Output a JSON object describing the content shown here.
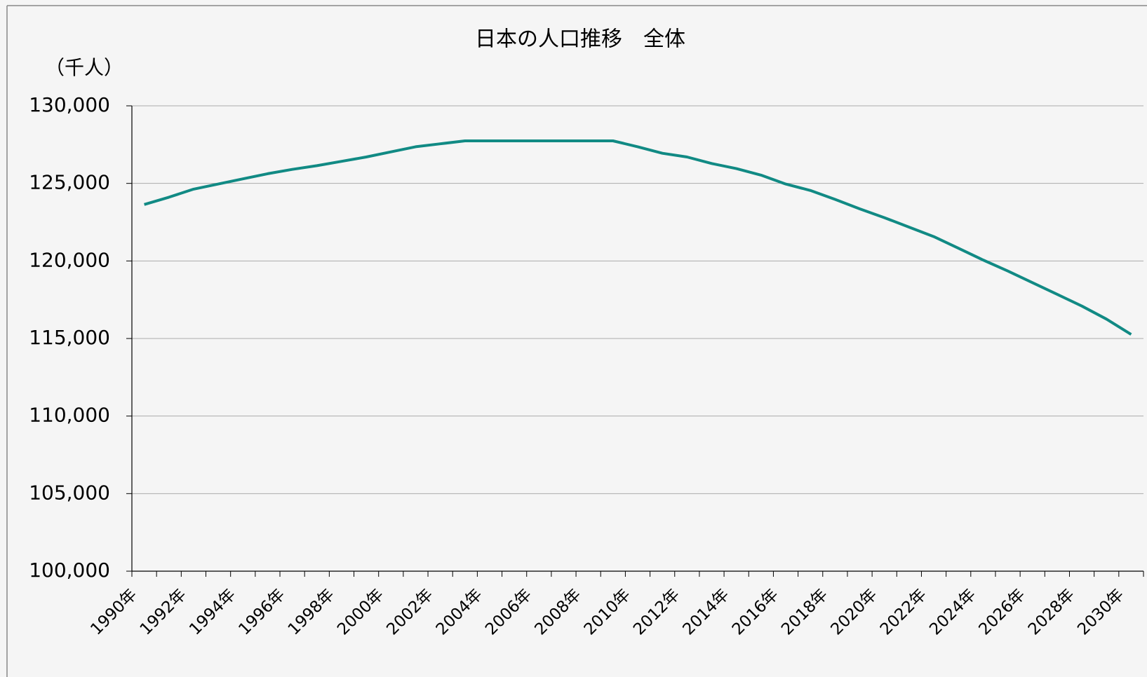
{
  "chart_data": {
    "type": "line",
    "title": "日本の人口推移　全体",
    "y_label": "（千人）",
    "categories": [
      "1990年",
      null,
      "1992年",
      null,
      "1994年",
      null,
      "1996年",
      null,
      "1998年",
      null,
      "2000年",
      null,
      "2002年",
      null,
      "2004年",
      null,
      "2006年",
      null,
      "2008年",
      null,
      "2010年",
      null,
      "2012年",
      null,
      "2014年",
      null,
      "2016年",
      null,
      "2018年",
      null,
      "2020年",
      null,
      "2022年",
      null,
      "2024年",
      null,
      "2026年",
      null,
      "2028年",
      null,
      "2030年"
    ],
    "series": [
      {
        "name": "全体",
        "color": "#118a84",
        "values": [
          123640,
          124110,
          124630,
          124960,
          125290,
          125620,
          125900,
          126140,
          126420,
          126700,
          127030,
          127360,
          127550,
          127740,
          127740,
          127740,
          127740,
          127740,
          127740,
          127740,
          127360,
          126940,
          126700,
          126280,
          125950,
          125530,
          124960,
          124540,
          123970,
          123360,
          122790,
          122180,
          121570,
          120820,
          120060,
          119350,
          118600,
          117850,
          117090,
          116250,
          115260
        ]
      }
    ],
    "ylim": [
      100000,
      130000
    ],
    "yticks": [
      {
        "value": 100000,
        "label": "100,000"
      },
      {
        "value": 105000,
        "label": "105,000"
      },
      {
        "value": 110000,
        "label": "110,000"
      },
      {
        "value": 115000,
        "label": "115,000"
      },
      {
        "value": 120000,
        "label": "120,000"
      },
      {
        "value": 125000,
        "label": "125,000"
      },
      {
        "value": 130000,
        "label": "130,000"
      }
    ],
    "grid": true
  }
}
